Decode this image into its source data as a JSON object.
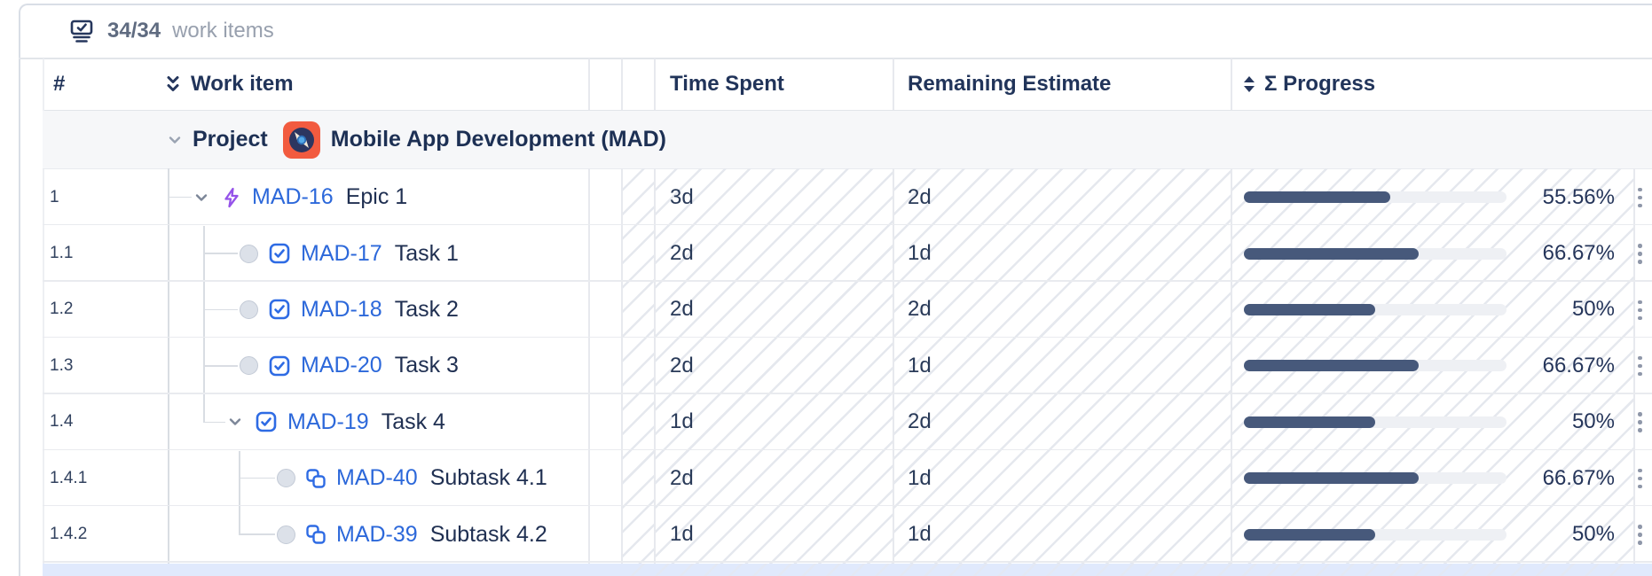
{
  "toolbar": {
    "count": "34/34",
    "label": "work items",
    "icon": "work-items-tray-icon"
  },
  "header": {
    "number": "#",
    "work_item": "Work item",
    "time_spent": "Time Spent",
    "remaining_estimate": "Remaining Estimate",
    "progress": "Σ Progress",
    "collapse_icon": "double-chevron-down-icon",
    "sort_icon": "sort-up-down-icon"
  },
  "project": {
    "type_label": "Project",
    "name": "Mobile App Development (MAD)",
    "avatar": "vinyl-record-on-orange-tile"
  },
  "rows": [
    {
      "num": "1",
      "level": 1,
      "expander": true,
      "type": "epic",
      "key": "MAD-16",
      "summary": "Epic 1",
      "time_spent": "3d",
      "remaining": "2d",
      "progress_label": "55.56%",
      "progress_pct": 55.56
    },
    {
      "num": "1.1",
      "level": 2,
      "expander": false,
      "type": "task",
      "key": "MAD-17",
      "summary": "Task 1",
      "time_spent": "2d",
      "remaining": "1d",
      "progress_label": "66.67%",
      "progress_pct": 66.67
    },
    {
      "num": "1.2",
      "level": 2,
      "expander": false,
      "type": "task",
      "key": "MAD-18",
      "summary": "Task 2",
      "time_spent": "2d",
      "remaining": "2d",
      "progress_label": "50%",
      "progress_pct": 50
    },
    {
      "num": "1.3",
      "level": 2,
      "expander": false,
      "type": "task",
      "key": "MAD-20",
      "summary": "Task 3",
      "time_spent": "2d",
      "remaining": "1d",
      "progress_label": "66.67%",
      "progress_pct": 66.67
    },
    {
      "num": "1.4",
      "level": 2,
      "expander": true,
      "type": "task",
      "key": "MAD-19",
      "summary": "Task 4",
      "time_spent": "1d",
      "remaining": "2d",
      "progress_label": "50%",
      "progress_pct": 50
    },
    {
      "num": "1.4.1",
      "level": 3,
      "expander": false,
      "type": "subtask",
      "key": "MAD-40",
      "summary": "Subtask 4.1",
      "time_spent": "2d",
      "remaining": "1d",
      "progress_label": "66.67%",
      "progress_pct": 66.67
    },
    {
      "num": "1.4.2",
      "level": 3,
      "expander": false,
      "type": "subtask",
      "key": "MAD-39",
      "summary": "Subtask 4.2",
      "time_spent": "1d",
      "remaining": "1d",
      "progress_label": "50%",
      "progress_pct": 50
    }
  ],
  "colors": {
    "link_blue": "#2c68da",
    "issue_type_blue": "#2e6be4",
    "epic_purple": "#9553e9",
    "bar_fill": "#47597b",
    "bar_track": "#eef0f4",
    "project_row_bg": "#f6f7f9",
    "selection_band_blue": "#e0e9fc",
    "avatar_orange": "#f25b3f",
    "text_navy": "#21345a"
  }
}
